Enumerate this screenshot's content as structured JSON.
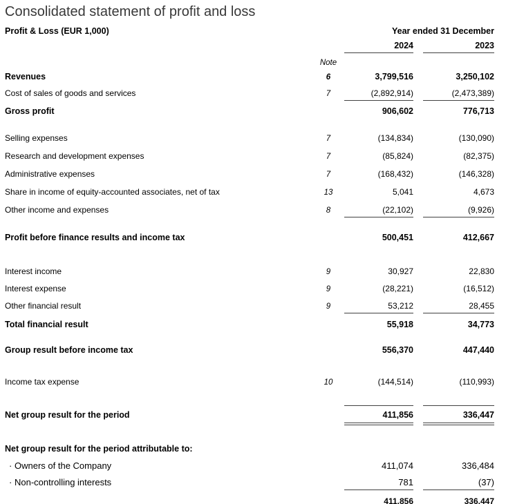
{
  "page": {
    "title": "Consolidated statement of profit and loss"
  },
  "table": {
    "header": {
      "left_title": "Profit & Loss (EUR 1,000)",
      "period_title": "Year ended 31 December",
      "year_2024": "2024",
      "year_2023": "2023",
      "note_label": "Note"
    },
    "rows": [
      {
        "label": "Revenues",
        "note": "6",
        "v2024": "3,799,516",
        "v2023": "3,250,102"
      },
      {
        "label": "Cost of sales of goods and services",
        "note": "7",
        "v2024": "(2,892,914)",
        "v2023": "(2,473,389)"
      },
      {
        "label": "Gross profit",
        "v2024": "906,602",
        "v2023": "776,713"
      },
      {
        "label": "Selling expenses",
        "note": "7",
        "v2024": "(134,834)",
        "v2023": "(130,090)"
      },
      {
        "label": "Research and development expenses",
        "note": "7",
        "v2024": "(85,824)",
        "v2023": "(82,375)"
      },
      {
        "label": "Administrative expenses",
        "note": "7",
        "v2024": "(168,432)",
        "v2023": "(146,328)"
      },
      {
        "label": "Share in income of equity-accounted associates, net of tax",
        "note": "13",
        "v2024": "5,041",
        "v2023": "4,673"
      },
      {
        "label": "Other income and expenses",
        "note": "8",
        "v2024": "(22,102)",
        "v2023": "(9,926)"
      },
      {
        "label": "Profit before finance results and income tax",
        "v2024": "500,451",
        "v2023": "412,667"
      },
      {
        "label": "Interest income",
        "note": "9",
        "v2024": "30,927",
        "v2023": "22,830"
      },
      {
        "label": "Interest expense",
        "note": "9",
        "v2024": "(28,221)",
        "v2023": "(16,512)"
      },
      {
        "label": "Other financial result",
        "note": "9",
        "v2024": "53,212",
        "v2023": "28,455"
      },
      {
        "label": "Total financial result",
        "v2024": "55,918",
        "v2023": "34,773"
      },
      {
        "label": "Group result before income tax",
        "v2024": "556,370",
        "v2023": "447,440"
      },
      {
        "label": "Income tax expense",
        "note": "10",
        "v2024": "(144,514)",
        "v2023": "(110,993)"
      },
      {
        "label": "Net group result for the period",
        "v2024": "411,856",
        "v2023": "336,447"
      },
      {
        "label": "Net group result for the period attributable to:"
      },
      {
        "bullet": "·",
        "label": "Owners of the Company",
        "v2024": "411,074",
        "v2023": "336,484"
      },
      {
        "bullet": "·",
        "label": "Non-controlling interests",
        "v2024": "781",
        "v2023": "(37)"
      },
      {
        "v2024": "411,856",
        "v2023": "336,447"
      }
    ]
  }
}
